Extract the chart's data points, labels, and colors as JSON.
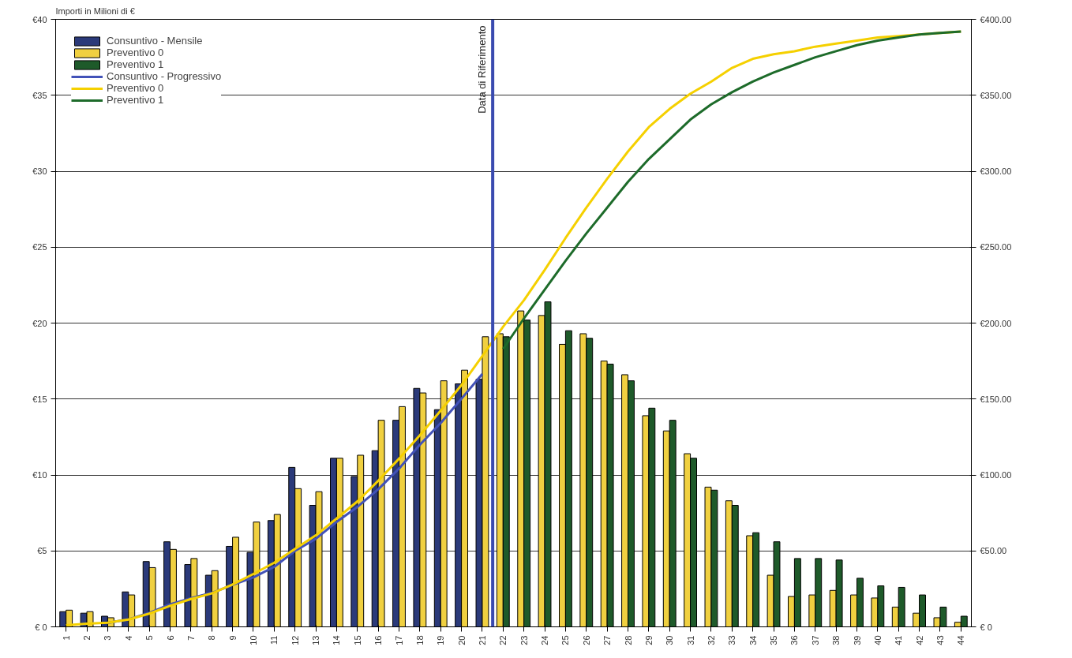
{
  "chart_data": {
    "type": "bar",
    "ylabel": "Importi in Milioni di €",
    "x": [
      1,
      2,
      3,
      4,
      5,
      6,
      7,
      8,
      9,
      10,
      11,
      12,
      13,
      14,
      15,
      16,
      17,
      18,
      19,
      20,
      21,
      22,
      23,
      24,
      25,
      26,
      27,
      28,
      29,
      30,
      31,
      32,
      33,
      34,
      35,
      36,
      37,
      38,
      39,
      40,
      41,
      42,
      43,
      44
    ],
    "xlim": [
      0.5,
      44.5
    ],
    "xticks": [
      1,
      2,
      3,
      4,
      5,
      6,
      7,
      8,
      9,
      10,
      11,
      12,
      13,
      14,
      15,
      16,
      17,
      18,
      19,
      20,
      21,
      22,
      23,
      24,
      25,
      26,
      27,
      28,
      29,
      30,
      31,
      32,
      33,
      34,
      35,
      36,
      37,
      38,
      39,
      40,
      41,
      42,
      43,
      44
    ],
    "ylim": [
      0,
      40
    ],
    "yticks": [
      {
        "value": 0,
        "label": "€ 0"
      },
      {
        "value": 5,
        "label": "€5"
      },
      {
        "value": 10,
        "label": "€10"
      },
      {
        "value": 15,
        "label": "€15"
      },
      {
        "value": 20,
        "label": "€20"
      },
      {
        "value": 25,
        "label": "€25"
      },
      {
        "value": 30,
        "label": "€30"
      },
      {
        "value": 35,
        "label": "€35"
      },
      {
        "value": 40,
        "label": "€40"
      }
    ],
    "y2lim": [
      0,
      400
    ],
    "y2ticks": [
      {
        "value": 0,
        "label": "€ 0"
      },
      {
        "value": 50,
        "label": "€50.00"
      },
      {
        "value": 100,
        "label": "€100.00"
      },
      {
        "value": 150,
        "label": "€150.00"
      },
      {
        "value": 200,
        "label": "€200.00"
      },
      {
        "value": 250,
        "label": "€250.00"
      },
      {
        "value": 300,
        "label": "€300.00"
      },
      {
        "value": 350,
        "label": "€350.00"
      },
      {
        "value": 400,
        "label": "€400.00"
      }
    ],
    "grid": "y",
    "legend": "top left",
    "series": [
      {
        "name": "Consuntivo - Mensile",
        "color": "#2b3a7a",
        "values": [
          1.0,
          0.9,
          0.7,
          2.3,
          4.3,
          5.6,
          4.1,
          3.4,
          5.3,
          4.9,
          7.0,
          10.5,
          8.0,
          11.1,
          9.9,
          11.6,
          13.6,
          15.7,
          14.3,
          16.0,
          16.3,
          null,
          null,
          null,
          null,
          null,
          null,
          null,
          null,
          null,
          null,
          null,
          null,
          null,
          null,
          null,
          null,
          null,
          null,
          null,
          null,
          null,
          null,
          null
        ]
      },
      {
        "name": "Preventivo 0",
        "color": "#f0d040",
        "values": [
          1.1,
          1.0,
          0.6,
          2.1,
          3.9,
          5.1,
          4.5,
          3.7,
          5.9,
          6.9,
          7.4,
          9.1,
          8.9,
          11.1,
          11.3,
          13.6,
          14.5,
          15.4,
          16.2,
          16.9,
          19.1,
          19.3,
          20.8,
          20.5,
          18.6,
          19.3,
          17.5,
          16.6,
          13.9,
          12.9,
          11.4,
          9.2,
          8.3,
          6.0,
          3.4,
          2.0,
          2.1,
          2.4,
          2.1,
          1.9,
          1.3,
          0.9,
          0.6,
          0.3
        ]
      },
      {
        "name": "Preventivo 1",
        "color": "#1e5a2a",
        "values": [
          null,
          null,
          null,
          null,
          null,
          null,
          null,
          null,
          null,
          null,
          null,
          null,
          null,
          null,
          null,
          null,
          null,
          null,
          null,
          null,
          null,
          19.1,
          20.2,
          21.4,
          19.5,
          19.0,
          17.3,
          16.2,
          14.4,
          13.6,
          11.1,
          9.0,
          8.0,
          6.2,
          5.6,
          4.5,
          4.5,
          4.4,
          3.2,
          2.7,
          2.6,
          2.1,
          1.3,
          0.7
        ]
      },
      {
        "name": "Consuntivo - Progressivo",
        "type": "line",
        "axis": "y2",
        "color": "#4252b8",
        "values": [
          null,
          null,
          2.6,
          4.9,
          9.2,
          14.8,
          18.9,
          22.3,
          27.6,
          32.5,
          39.5,
          50.0,
          58.0,
          69.1,
          79.0,
          90.6,
          104.2,
          119.9,
          134.2,
          150.2,
          166.5,
          null,
          null,
          null,
          null,
          null,
          null,
          null,
          null,
          null,
          null,
          null,
          null,
          null,
          null,
          null,
          null,
          null,
          null,
          null,
          null,
          null,
          null,
          null
        ]
      },
      {
        "name": "Preventivo 0",
        "type": "line",
        "axis": "y2",
        "color": "#f5d000",
        "values": [
          1.1,
          2.1,
          2.7,
          4.8,
          8.7,
          13.8,
          18.3,
          22.0,
          27.9,
          34.8,
          42.2,
          51.3,
          60.2,
          71.3,
          82.6,
          96.2,
          110.7,
          126.1,
          142.3,
          159.2,
          178.3,
          197.6,
          215,
          235,
          256,
          276,
          295,
          313,
          329,
          341,
          351,
          359,
          368,
          374,
          377,
          379,
          382,
          384,
          386,
          388,
          389,
          390,
          391,
          392
        ]
      },
      {
        "name": "Preventivo 1",
        "type": "line",
        "axis": "y2",
        "color": "#1d6b2a",
        "values": [
          null,
          null,
          null,
          null,
          null,
          null,
          null,
          null,
          null,
          null,
          null,
          null,
          null,
          null,
          null,
          null,
          null,
          null,
          null,
          null,
          null,
          183,
          203,
          222,
          241,
          259,
          276,
          293,
          308,
          321,
          334,
          344,
          352,
          359,
          365,
          370,
          375,
          379,
          383,
          386,
          388,
          390,
          391,
          392
        ]
      }
    ],
    "ref_lines": [
      {
        "axis": "x",
        "value": 21.5,
        "label": "Data di Riferimento",
        "color": "#3a4bb0"
      }
    ]
  }
}
